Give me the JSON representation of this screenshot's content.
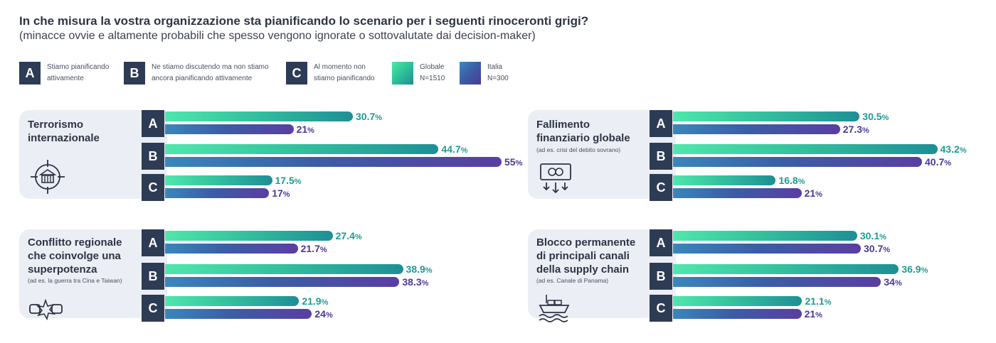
{
  "title": "In che misura la vostra organizzazione sta pianificando lo scenario per i seguenti rinoceronti grigi?",
  "subtitle": "(minacce ovvie e altamente probabili che spesso vengono ignorate o sottovalutate dai decision-maker)",
  "legend": {
    "categories": [
      {
        "key": "A",
        "label": "Stiamo pianificando\nattivamente"
      },
      {
        "key": "B",
        "label": "Ne stiamo discutendo ma non stiamo\nancora pianificando attivamente"
      },
      {
        "key": "C",
        "label": "Al momento non\nstiamo pianificando"
      }
    ],
    "series": [
      {
        "name": "Globale",
        "n": "N=1510",
        "label": "Globale\nN=1510",
        "color": "#37c79f"
      },
      {
        "name": "Italia",
        "n": "N=300",
        "label": "Italia\nN=300",
        "color": "#3b5da6"
      }
    ]
  },
  "colors": {
    "navy": "#2e3b55",
    "panel": "#ebeef4",
    "global_text": "#1f9c8f",
    "italy_text": "#4a3a96"
  },
  "percent_sign": "%",
  "chart_data": [
    {
      "type": "bar",
      "orientation": "horizontal",
      "title": "Terrorismo\ninternazionale",
      "note": "",
      "icon": "target-building-icon",
      "categories": [
        "A",
        "B",
        "C"
      ],
      "xlim": [
        0,
        55
      ],
      "series": [
        {
          "name": "Globale",
          "values": [
            30.7,
            44.7,
            17.5
          ],
          "labels": [
            "30.7",
            "44.7",
            "17.5"
          ]
        },
        {
          "name": "Italia",
          "values": [
            21,
            55,
            17
          ],
          "labels": [
            "21",
            "55",
            "17"
          ]
        }
      ]
    },
    {
      "type": "bar",
      "orientation": "horizontal",
      "title": "Fallimento\nfinanziario globale",
      "note": "(ad es. crisi del debito sovrano)",
      "icon": "money-down-icon",
      "categories": [
        "A",
        "B",
        "C"
      ],
      "xlim": [
        0,
        55
      ],
      "series": [
        {
          "name": "Globale",
          "values": [
            30.5,
            43.2,
            16.8
          ],
          "labels": [
            "30.5",
            "43.2",
            "16.8"
          ]
        },
        {
          "name": "Italia",
          "values": [
            27.3,
            40.7,
            21
          ],
          "labels": [
            "27.3",
            "40.7",
            "21"
          ]
        }
      ]
    },
    {
      "type": "bar",
      "orientation": "horizontal",
      "title": "Conflitto regionale\nche coinvolge una\nsuperpotenza",
      "note": "(ad es. la guerra tra Cina e Taiwan)",
      "icon": "fists-clash-icon",
      "categories": [
        "A",
        "B",
        "C"
      ],
      "xlim": [
        0,
        55
      ],
      "series": [
        {
          "name": "Globale",
          "values": [
            27.4,
            38.9,
            21.9
          ],
          "labels": [
            "27.4",
            "38.9",
            "21.9"
          ]
        },
        {
          "name": "Italia",
          "values": [
            21.7,
            38.3,
            24
          ],
          "labels": [
            "21.7",
            "38.3",
            "24"
          ]
        }
      ]
    },
    {
      "type": "bar",
      "orientation": "horizontal",
      "title": "Blocco permanente\ndi principali canali\ndella supply chain",
      "note": "(ad es. Canale di Panama)",
      "icon": "cargo-ship-icon",
      "categories": [
        "A",
        "B",
        "C"
      ],
      "xlim": [
        0,
        55
      ],
      "series": [
        {
          "name": "Globale",
          "values": [
            30.1,
            36.9,
            21.1
          ],
          "labels": [
            "30.1",
            "36.9",
            "21.1"
          ]
        },
        {
          "name": "Italia",
          "values": [
            30.7,
            34,
            21
          ],
          "labels": [
            "30.7",
            "34",
            "21"
          ]
        }
      ]
    }
  ]
}
